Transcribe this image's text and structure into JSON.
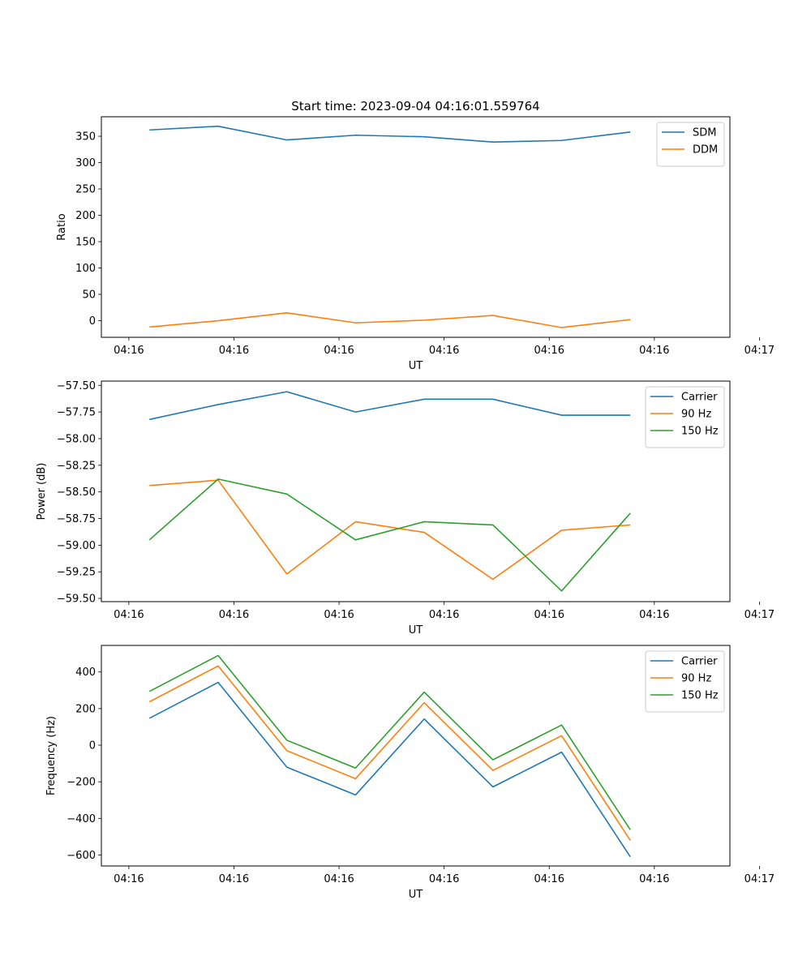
{
  "figure_title": "Start time: 2023-09-04 04:16:01.559764",
  "chart_data": [
    {
      "type": "line",
      "title": "Start time: 2023-09-04 04:16:01.559764",
      "xlabel": "UT",
      "ylabel": "Ratio",
      "x": [
        1,
        2,
        3,
        4,
        5,
        6,
        7,
        8
      ],
      "xlim": [
        0.3,
        9.45
      ],
      "xticks": [
        0.7,
        2.23,
        3.76,
        5.29,
        6.82,
        8.35,
        9.88
      ],
      "xtick_labels": [
        "04:16",
        "04:16",
        "04:16",
        "04:16",
        "04:16",
        "04:16",
        "04:17"
      ],
      "ylim": [
        -31.5,
        387
      ],
      "yticks": [
        0,
        50,
        100,
        150,
        200,
        250,
        300,
        350
      ],
      "ytick_labels": [
        "0",
        "50",
        "100",
        "150",
        "200",
        "250",
        "300",
        "350"
      ],
      "legend": "top-right",
      "series": [
        {
          "name": "SDM",
          "color": "#1f77b4",
          "values": [
            362,
            369,
            343,
            352,
            349,
            339,
            342,
            358
          ]
        },
        {
          "name": "DDM",
          "color": "#ff7f0e",
          "values": [
            -12,
            0,
            15,
            -4,
            1,
            10,
            -13,
            2
          ]
        }
      ]
    },
    {
      "type": "line",
      "title": "",
      "xlabel": "UT",
      "ylabel": "Power (dB)",
      "x": [
        1,
        2,
        3,
        4,
        5,
        6,
        7,
        8
      ],
      "xlim": [
        0.3,
        9.45
      ],
      "xticks": [
        0.7,
        2.23,
        3.76,
        5.29,
        6.82,
        8.35,
        9.88
      ],
      "xtick_labels": [
        "04:16",
        "04:16",
        "04:16",
        "04:16",
        "04:16",
        "04:16",
        "04:17"
      ],
      "ylim": [
        -59.53,
        -57.46
      ],
      "yticks": [
        -57.5,
        -57.75,
        -58.0,
        -58.25,
        -58.5,
        -58.75,
        -59.0,
        -59.25,
        -59.5
      ],
      "ytick_labels": [
        "−57.50",
        "−57.75",
        "−58.00",
        "−58.25",
        "−58.50",
        "−58.75",
        "−59.00",
        "−59.25",
        "−59.50"
      ],
      "legend": "top-right",
      "series": [
        {
          "name": "Carrier",
          "color": "#1f77b4",
          "values": [
            -57.82,
            -57.68,
            -57.56,
            -57.75,
            -57.63,
            -57.63,
            -57.78,
            -57.78
          ]
        },
        {
          "name": "90 Hz",
          "color": "#ff7f0e",
          "values": [
            -58.44,
            -58.39,
            -59.27,
            -58.78,
            -58.88,
            -59.32,
            -58.86,
            -58.81
          ]
        },
        {
          "name": "150 Hz",
          "color": "#2ca02c",
          "values": [
            -58.95,
            -58.38,
            -58.52,
            -58.95,
            -58.78,
            -58.81,
            -59.43,
            -58.7
          ]
        }
      ]
    },
    {
      "type": "line",
      "title": "",
      "xlabel": "UT",
      "ylabel": "Frequency (Hz)",
      "x": [
        1,
        2,
        3,
        4,
        5,
        6,
        7,
        8
      ],
      "xlim": [
        0.3,
        9.45
      ],
      "xticks": [
        0.7,
        2.23,
        3.76,
        5.29,
        6.82,
        8.35,
        9.88
      ],
      "xtick_labels": [
        "04:16",
        "04:16",
        "04:16",
        "04:16",
        "04:16",
        "04:16",
        "04:17"
      ],
      "ylim": [
        -660,
        545
      ],
      "yticks": [
        -600,
        -400,
        -200,
        0,
        200,
        400
      ],
      "ytick_labels": [
        "−600",
        "−400",
        "−200",
        "0",
        "200",
        "400"
      ],
      "legend": "top-right",
      "series": [
        {
          "name": "Carrier",
          "color": "#1f77b4",
          "values": [
            147,
            343,
            -120,
            -272,
            143,
            -228,
            -38,
            -610
          ]
        },
        {
          "name": "90 Hz",
          "color": "#ff7f0e",
          "values": [
            237,
            433,
            -30,
            -183,
            232,
            -138,
            52,
            -520
          ]
        },
        {
          "name": "150 Hz",
          "color": "#2ca02c",
          "values": [
            294,
            490,
            27,
            -125,
            290,
            -80,
            110,
            -462
          ]
        }
      ]
    }
  ]
}
